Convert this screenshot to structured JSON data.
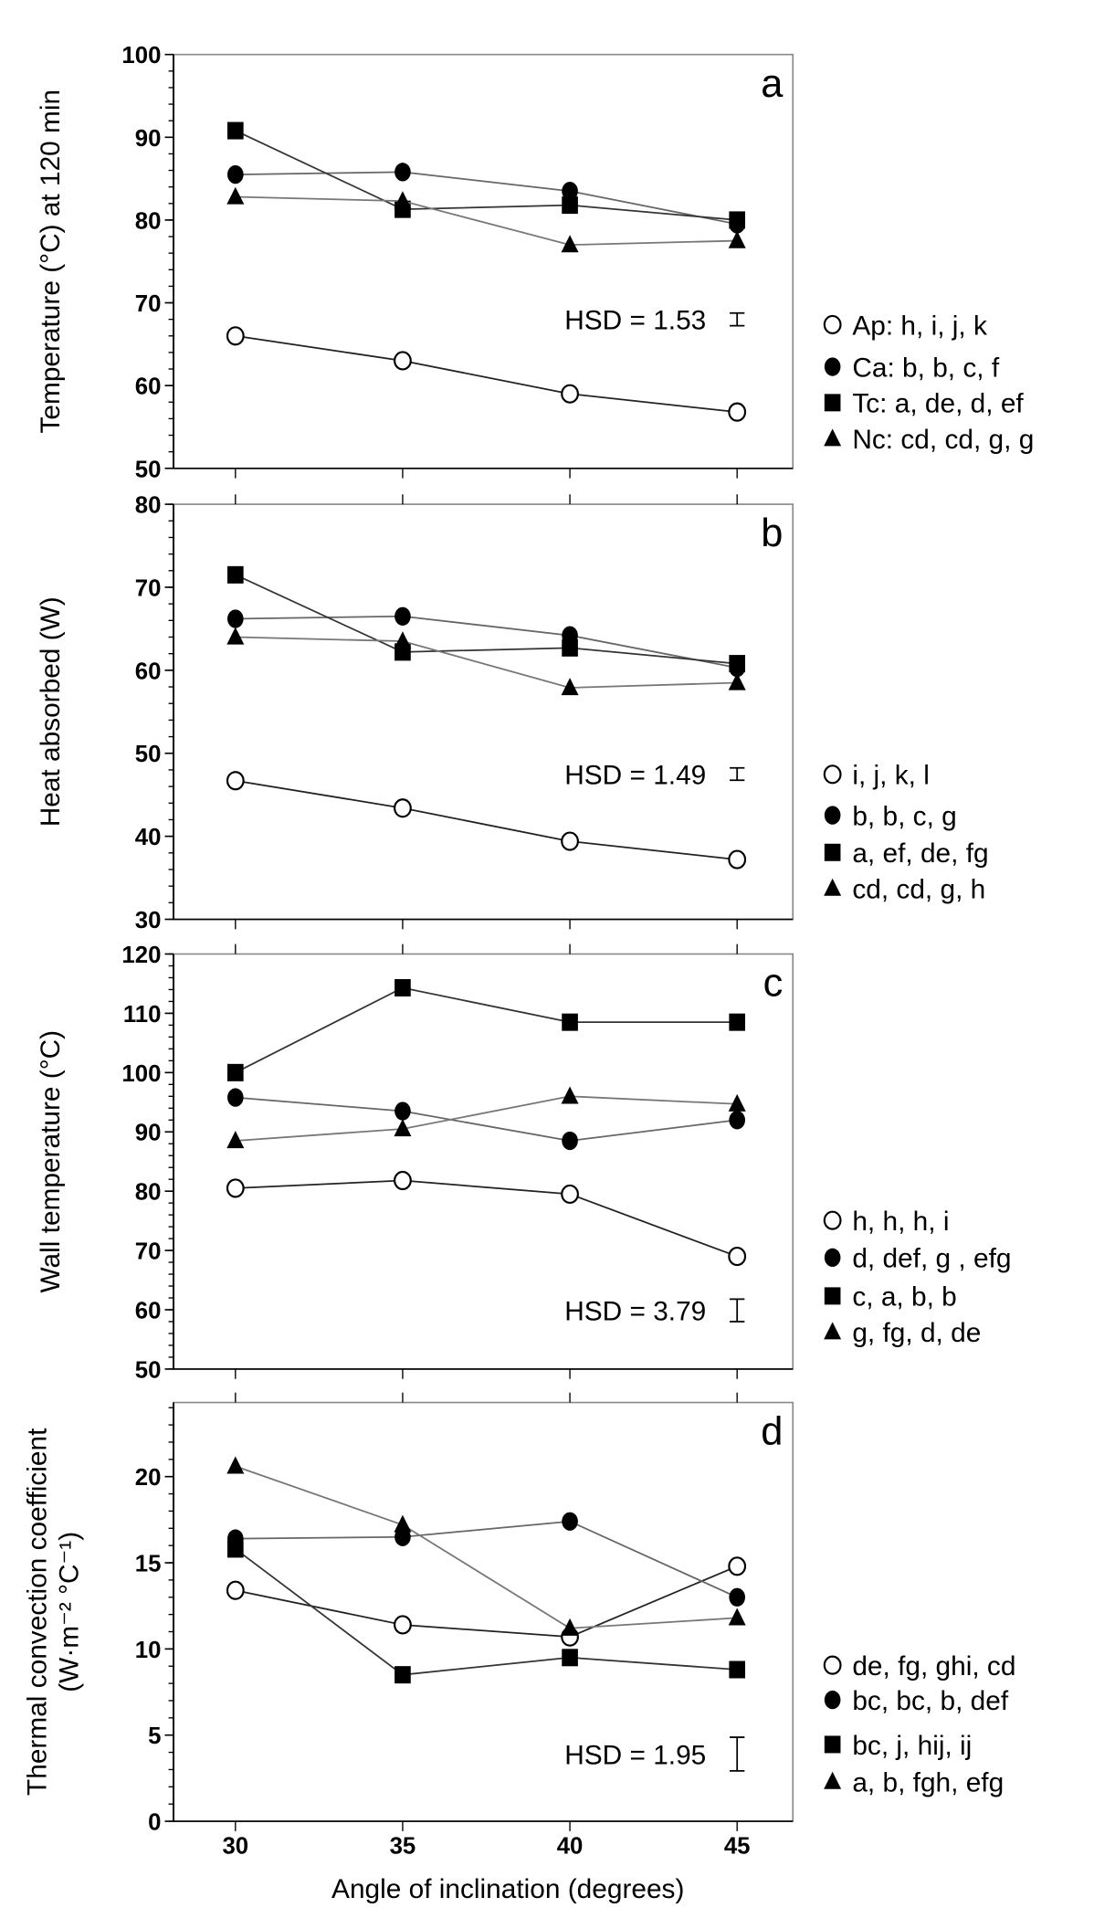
{
  "chart_data": [
    {
      "type": "line",
      "panel_label": "a",
      "ylabel": "Temperature (°C) at 120 min",
      "ylim": [
        50,
        100
      ],
      "yticks": [
        50,
        60,
        70,
        80,
        90,
        100
      ],
      "yminor_step": 2,
      "x": [
        30,
        35,
        40,
        45
      ],
      "hsd": {
        "text": "HSD = 1.53",
        "value": 1.53,
        "center": 68
      },
      "series": [
        {
          "marker": "open-circle",
          "legend": "Ap: h, i, j, k",
          "values": [
            66,
            63,
            59,
            56.8
          ]
        },
        {
          "marker": "filled-circle",
          "legend": "Ca: b, b, c, f",
          "values": [
            85.5,
            85.8,
            83.5,
            79.5
          ]
        },
        {
          "marker": "filled-square",
          "legend": "Tc: a, de, d, ef",
          "values": [
            90.8,
            81.3,
            81.8,
            80
          ]
        },
        {
          "marker": "filled-triangle",
          "legend": "Nc: cd, cd, g, g",
          "values": [
            82.8,
            82.3,
            77,
            77.5
          ]
        }
      ]
    },
    {
      "type": "line",
      "panel_label": "b",
      "ylabel": "Heat absorbed (W)",
      "ylim": [
        30,
        80
      ],
      "yticks": [
        30,
        40,
        50,
        60,
        70,
        80
      ],
      "yminor_step": 2,
      "x": [
        30,
        35,
        40,
        45
      ],
      "hsd": {
        "text": "HSD = 1.49",
        "value": 1.49,
        "center": 47.5
      },
      "series": [
        {
          "marker": "open-circle",
          "legend": "i, j, k, l",
          "values": [
            46.7,
            43.4,
            39.4,
            37.2
          ]
        },
        {
          "marker": "filled-circle",
          "legend": "b, b, c, g",
          "values": [
            66.2,
            66.5,
            64.2,
            60.3
          ]
        },
        {
          "marker": "filled-square",
          "legend": "a, ef, de, fg",
          "values": [
            71.5,
            62.2,
            62.7,
            60.8
          ]
        },
        {
          "marker": "filled-triangle",
          "legend": "cd, cd, g, h",
          "values": [
            64,
            63.5,
            57.9,
            58.5
          ]
        }
      ]
    },
    {
      "type": "line",
      "panel_label": "c",
      "ylabel": "Wall temperature (°C)",
      "ylim": [
        50,
        120
      ],
      "yticks": [
        50,
        60,
        70,
        80,
        90,
        100,
        110,
        120
      ],
      "yminor_step": 2,
      "x": [
        30,
        35,
        40,
        45
      ],
      "hsd": {
        "text": "HSD = 3.79",
        "value": 3.79,
        "center": 59.9
      },
      "series": [
        {
          "marker": "open-circle",
          "legend": "h, h, h, i",
          "values": [
            80.5,
            81.8,
            79.5,
            69
          ]
        },
        {
          "marker": "filled-circle",
          "legend": "d, def, g , efg",
          "values": [
            95.8,
            93.5,
            88.5,
            92
          ]
        },
        {
          "marker": "filled-square",
          "legend": "c, a, b, b",
          "values": [
            100,
            114.3,
            108.5,
            108.5
          ]
        },
        {
          "marker": "filled-triangle",
          "legend": "g, fg, d, de",
          "values": [
            88.5,
            90.5,
            96,
            94.7
          ]
        }
      ]
    },
    {
      "type": "line",
      "panel_label": "d",
      "ylabel": [
        "Thermal convection coefficient",
        "(W·m⁻² °C⁻¹)"
      ],
      "xlabel": "Angle of inclination (degrees)",
      "ylim": [
        0,
        24.3
      ],
      "yticks": [
        0,
        5,
        10,
        15,
        20
      ],
      "yminor_step": 1,
      "x": [
        30,
        35,
        40,
        45
      ],
      "xticks": [
        "30",
        "35",
        "40",
        "45"
      ],
      "hsd": {
        "text": "HSD = 1.95",
        "value": 1.95,
        "center": 3.9
      },
      "series": [
        {
          "marker": "open-circle",
          "legend": "de, fg, ghi, cd",
          "values": [
            13.4,
            11.4,
            10.7,
            14.8
          ]
        },
        {
          "marker": "filled-circle",
          "legend": "bc, bc, b, def",
          "values": [
            16.4,
            16.5,
            17.4,
            13
          ]
        },
        {
          "marker": "filled-square",
          "legend": "bc, j, hij, ij",
          "values": [
            15.8,
            8.5,
            9.5,
            8.8
          ]
        },
        {
          "marker": "filled-triangle",
          "legend": "a, b, fgh, efg",
          "values": [
            20.6,
            17.2,
            11.2,
            11.8
          ]
        }
      ]
    }
  ]
}
